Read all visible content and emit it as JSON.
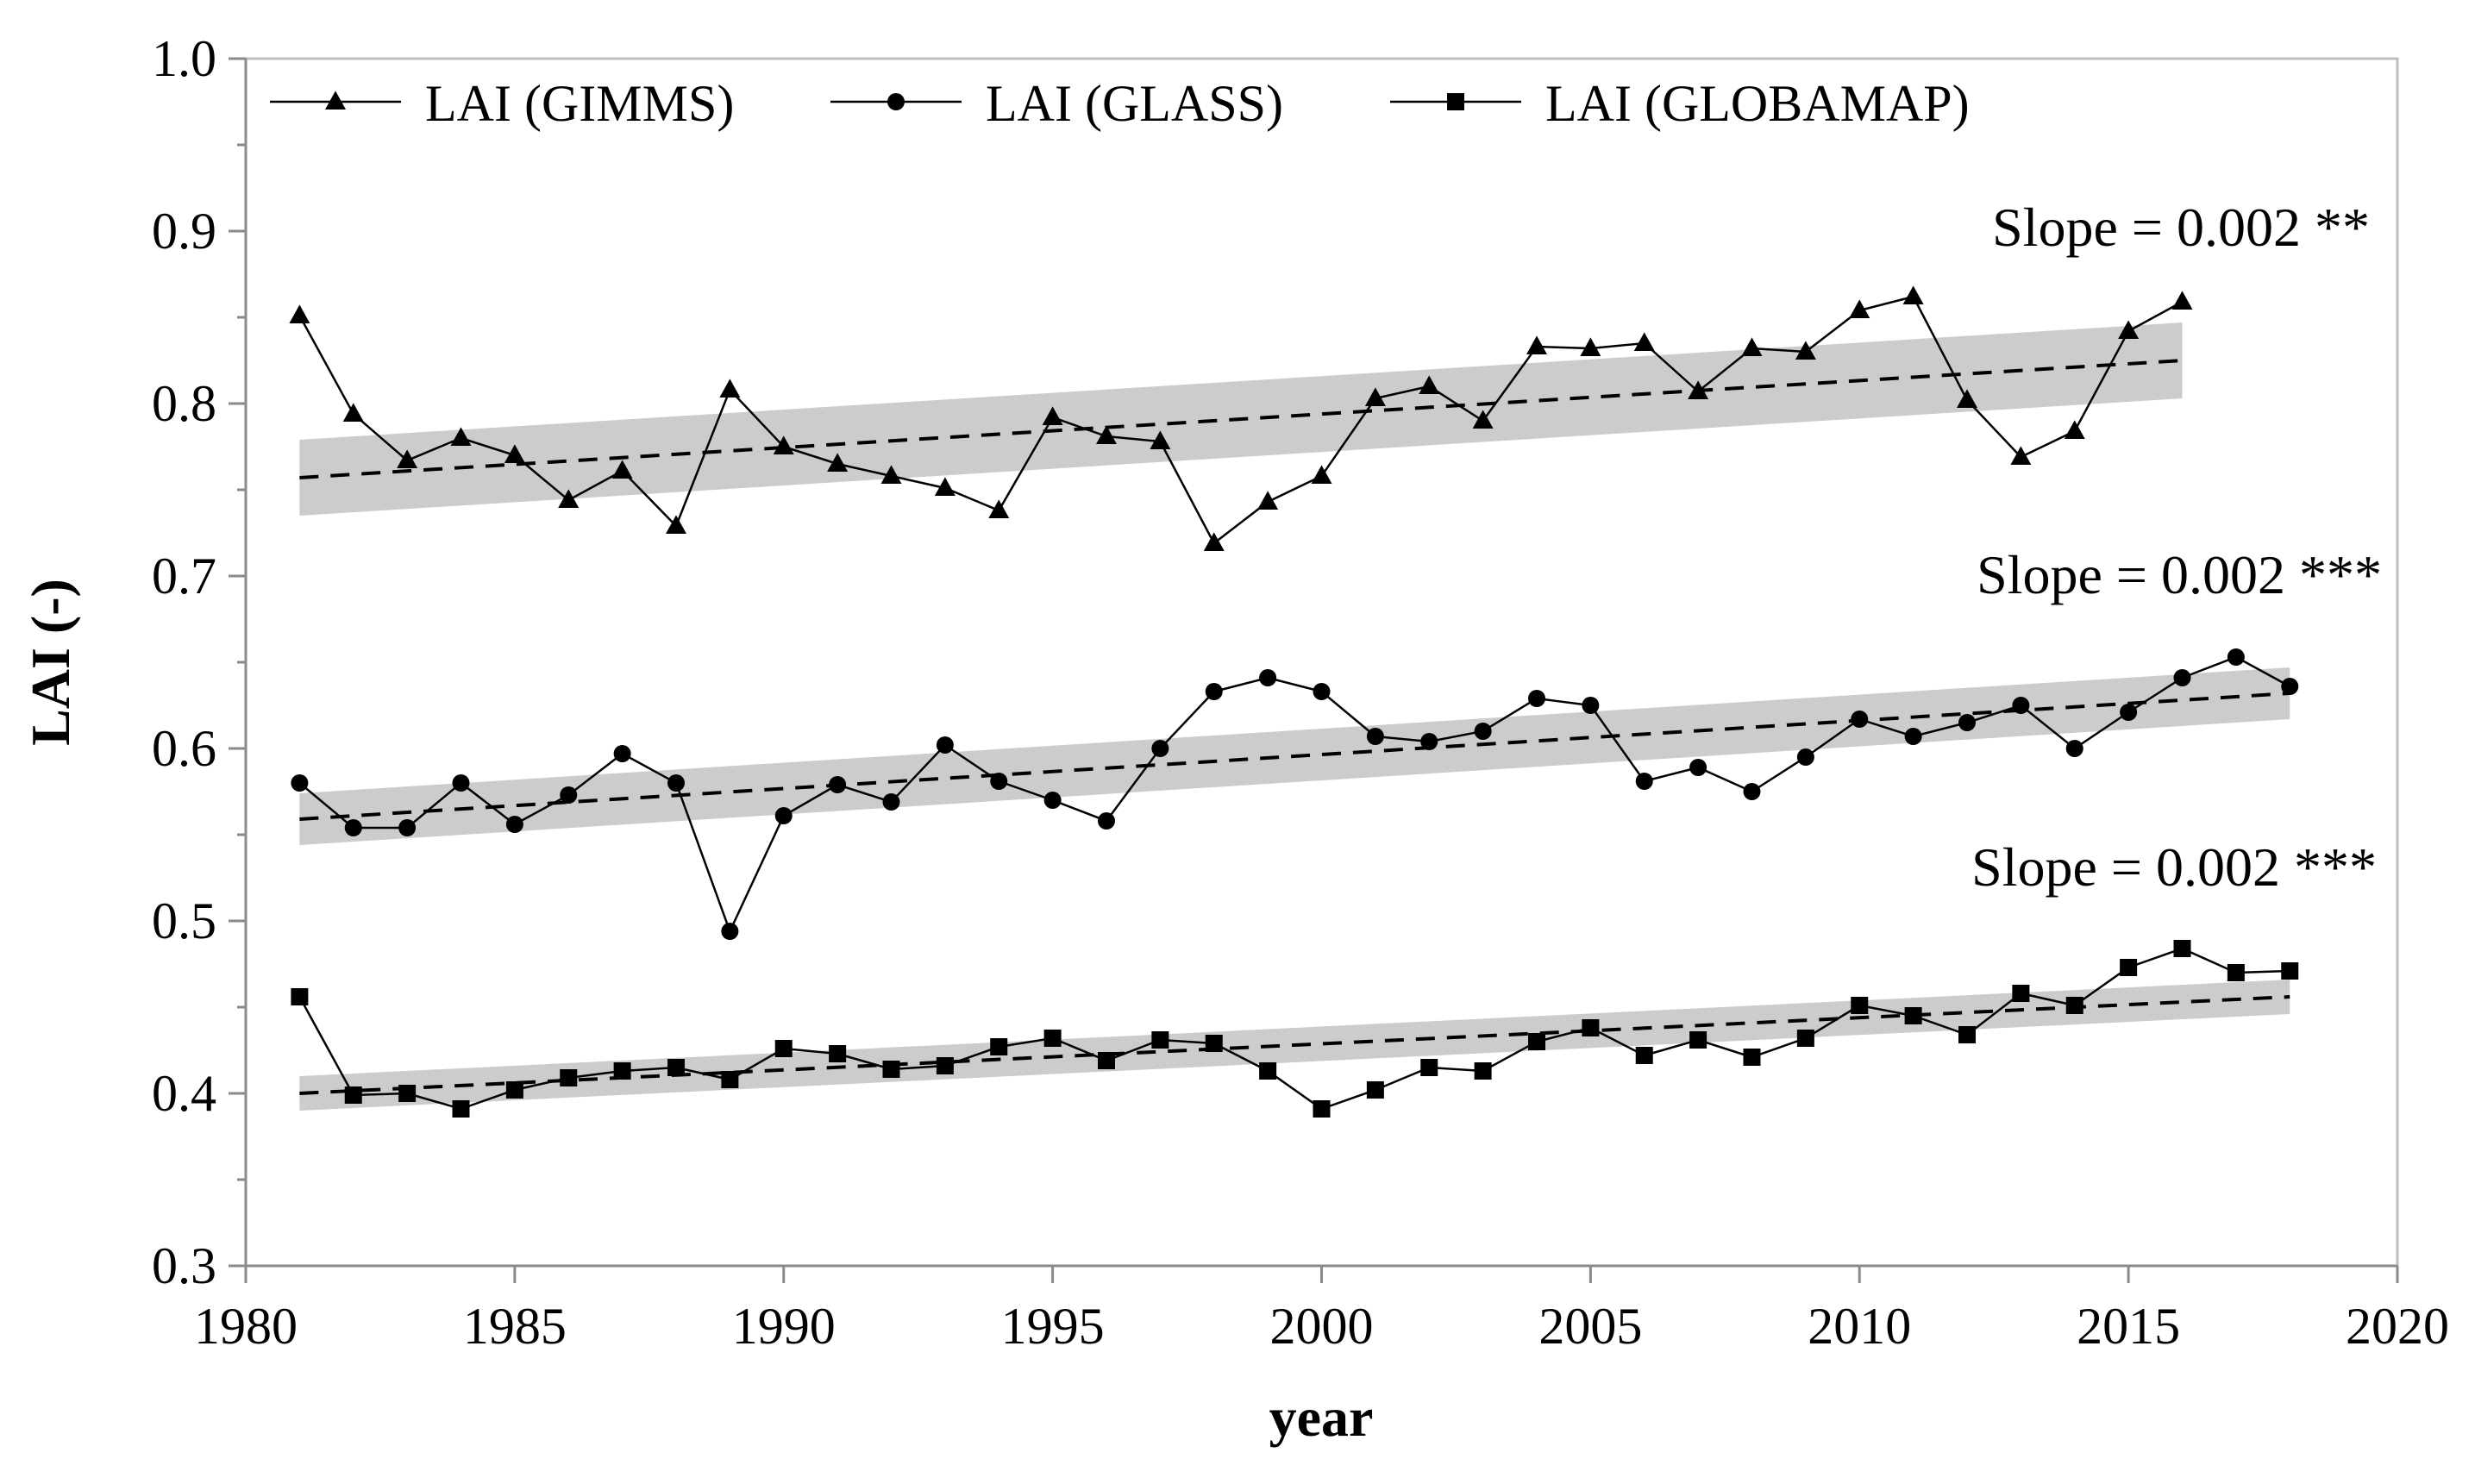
{
  "chart_data": {
    "type": "line",
    "title": "",
    "xlabel": "year",
    "ylabel": "LAI (-)",
    "xlim": [
      1980,
      2020
    ],
    "ylim": [
      0.3,
      1.0
    ],
    "xticks": [
      1980,
      1985,
      1990,
      1995,
      2000,
      2005,
      2010,
      2015,
      2020
    ],
    "yticks": [
      0.3,
      0.4,
      0.5,
      0.6,
      0.7,
      0.8,
      0.9,
      1.0
    ],
    "xtick_labels": [
      "1980",
      "1985",
      "1990",
      "1995",
      "2000",
      "2005",
      "2010",
      "2015",
      "2020"
    ],
    "ytick_labels": [
      "0.3",
      "0.4",
      "0.5",
      "0.6",
      "0.7",
      "0.8",
      "0.9",
      "1.0"
    ],
    "grid": false,
    "legend_position": "top-left",
    "series": [
      {
        "name": "LAI (GIMMS)",
        "marker": "triangle",
        "x": [
          1981,
          1982,
          1983,
          1984,
          1985,
          1986,
          1987,
          1988,
          1989,
          1990,
          1991,
          1992,
          1993,
          1994,
          1995,
          1996,
          1997,
          1998,
          1999,
          2000,
          2001,
          2002,
          2003,
          2004,
          2005,
          2006,
          2007,
          2008,
          2009,
          2010,
          2011,
          2012,
          2013,
          2014,
          2015,
          2016
        ],
        "values": [
          0.851,
          0.794,
          0.767,
          0.78,
          0.77,
          0.744,
          0.761,
          0.729,
          0.808,
          0.775,
          0.765,
          0.758,
          0.751,
          0.738,
          0.792,
          0.781,
          0.778,
          0.719,
          0.743,
          0.758,
          0.803,
          0.81,
          0.79,
          0.833,
          0.832,
          0.835,
          0.807,
          0.832,
          0.83,
          0.854,
          0.862,
          0.802,
          0.769,
          0.784,
          0.842,
          0.859
        ],
        "trend": {
          "start": [
            1981,
            0.757
          ],
          "end": [
            2016,
            0.825
          ],
          "band_halfwidth": [
            0.022,
            0.022
          ]
        },
        "annotation": "Slope = 0.002 **"
      },
      {
        "name": "LAI (GLASS)",
        "marker": "circle",
        "x": [
          1981,
          1982,
          1983,
          1984,
          1985,
          1986,
          1987,
          1988,
          1989,
          1990,
          1991,
          1992,
          1993,
          1994,
          1995,
          1996,
          1997,
          1998,
          1999,
          2000,
          2001,
          2002,
          2003,
          2004,
          2005,
          2006,
          2007,
          2008,
          2009,
          2010,
          2011,
          2012,
          2013,
          2014,
          2015,
          2016,
          2017,
          2018
        ],
        "values": [
          0.58,
          0.554,
          0.554,
          0.58,
          0.556,
          0.573,
          0.597,
          0.58,
          0.494,
          0.561,
          0.579,
          0.569,
          0.602,
          0.581,
          0.57,
          0.558,
          0.6,
          0.633,
          0.641,
          0.633,
          0.607,
          0.604,
          0.61,
          0.629,
          0.625,
          0.581,
          0.589,
          0.575,
          0.595,
          0.617,
          0.607,
          0.615,
          0.625,
          0.6,
          0.621,
          0.641,
          0.653,
          0.636
        ],
        "trend": {
          "start": [
            1981,
            0.559
          ],
          "end": [
            2018,
            0.632
          ],
          "band_halfwidth": [
            0.015,
            0.015
          ]
        },
        "annotation": "Slope = 0.002 ***"
      },
      {
        "name": "LAI (GLOBAMAP)",
        "marker": "square",
        "x": [
          1981,
          1982,
          1983,
          1984,
          1985,
          1986,
          1987,
          1988,
          1989,
          1990,
          1991,
          1992,
          1993,
          1994,
          1995,
          1996,
          1997,
          1998,
          1999,
          2000,
          2001,
          2002,
          2003,
          2004,
          2005,
          2006,
          2007,
          2008,
          2009,
          2010,
          2011,
          2012,
          2013,
          2014,
          2015,
          2016,
          2017,
          2018
        ],
        "values": [
          0.456,
          0.399,
          0.4,
          0.391,
          0.402,
          0.409,
          0.413,
          0.415,
          0.408,
          0.426,
          0.423,
          0.414,
          0.416,
          0.427,
          0.432,
          0.419,
          0.431,
          0.429,
          0.413,
          0.391,
          0.402,
          0.415,
          0.413,
          0.43,
          0.438,
          0.422,
          0.431,
          0.421,
          0.432,
          0.451,
          0.445,
          0.434,
          0.458,
          0.451,
          0.473,
          0.484,
          0.47,
          0.471
        ],
        "trend": {
          "start": [
            1981,
            0.4
          ],
          "end": [
            2018,
            0.456
          ],
          "band_halfwidth": [
            0.01,
            0.01
          ]
        },
        "annotation": "Slope = 0.002 ***"
      }
    ]
  }
}
